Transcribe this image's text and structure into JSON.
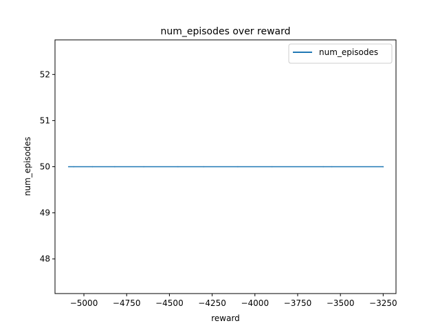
{
  "chart_data": {
    "type": "line",
    "title": "num_episodes over reward",
    "xlabel": "reward",
    "ylabel": "num_episodes",
    "xlim": [
      -5169,
      -3175
    ],
    "ylim": [
      47.25,
      52.75
    ],
    "x_ticks": [
      -5000,
      -4750,
      -4500,
      -4250,
      -4000,
      -3750,
      -3500,
      -3250
    ],
    "x_tick_labels": [
      "−5000",
      "−4750",
      "−4500",
      "−4250",
      "−4000",
      "−3750",
      "−3500",
      "−3250"
    ],
    "y_ticks": [
      48,
      49,
      50,
      51,
      52
    ],
    "y_tick_labels": [
      "48",
      "49",
      "50",
      "51",
      "52"
    ],
    "grid": false,
    "legend_position": "top-right",
    "series": [
      {
        "name": "num_episodes",
        "color": "#1f77b4",
        "x": [
          -5090,
          -4300,
          -4820,
          -3600,
          -4650,
          -3250,
          -4100,
          -5060,
          -3900,
          -4450,
          -3550,
          -4950,
          -3250
        ],
        "y": [
          50,
          50,
          50,
          50,
          50,
          50,
          50,
          50,
          50,
          50,
          50,
          50,
          50
        ]
      }
    ]
  }
}
